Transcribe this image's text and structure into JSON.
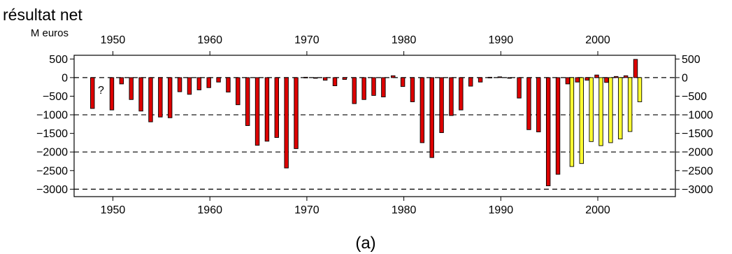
{
  "chart_data": {
    "type": "bar",
    "title": "résultat net",
    "ylabel": "M euros",
    "caption": "(a)",
    "annotation": "?",
    "xlim": [
      1946,
      2008
    ],
    "ylim": [
      -3200,
      600
    ],
    "x_ticks": [
      1950,
      1960,
      1970,
      1980,
      1990,
      2000
    ],
    "y_ticks": [
      500,
      0,
      -500,
      -1000,
      -1500,
      -2000,
      -2500,
      -3000
    ],
    "dashed_lines": [
      0,
      -1000,
      -2000,
      -3000
    ],
    "colors": {
      "series_red": "#dd0000",
      "series_yellow": "#ffff33",
      "outline": "#000000"
    },
    "series": [
      {
        "color": "#dd0000",
        "x": [
          1948,
          1950,
          1951,
          1952,
          1953,
          1954,
          1955,
          1956,
          1957,
          1958,
          1959,
          1960,
          1961,
          1962,
          1963,
          1964,
          1965,
          1966,
          1967,
          1968,
          1969,
          1970,
          1971,
          1972,
          1973,
          1974,
          1975,
          1976,
          1977,
          1978,
          1979,
          1980,
          1981,
          1982,
          1983,
          1984,
          1985,
          1986,
          1987,
          1988,
          1989,
          1990,
          1991,
          1992,
          1993,
          1994,
          1995,
          1996,
          1997,
          1998,
          1999,
          2000,
          2001,
          2002,
          2003,
          2004
        ],
        "values": [
          -830,
          -870,
          -170,
          -590,
          -900,
          -1190,
          -1060,
          -1080,
          -380,
          -450,
          -330,
          -270,
          -120,
          -390,
          -730,
          -1290,
          -1820,
          -1710,
          -1610,
          -2430,
          -1910,
          10,
          0,
          -70,
          -220,
          -50,
          -700,
          -590,
          -480,
          -520,
          50,
          -240,
          -650,
          -1750,
          -2150,
          -1480,
          -1020,
          -870,
          -230,
          -120,
          10,
          20,
          0,
          -550,
          -1400,
          -1460,
          -2910,
          -2600,
          -170,
          -120,
          -70,
          70,
          -130,
          30,
          50,
          490
        ]
      },
      {
        "color": "#ffff33",
        "x": [
          1997,
          1998,
          1999,
          2000,
          2001,
          2002,
          2003,
          2004
        ],
        "values": [
          -2390,
          -2310,
          -1720,
          -1830,
          -1750,
          -1650,
          -1450,
          -650
        ]
      }
    ]
  }
}
